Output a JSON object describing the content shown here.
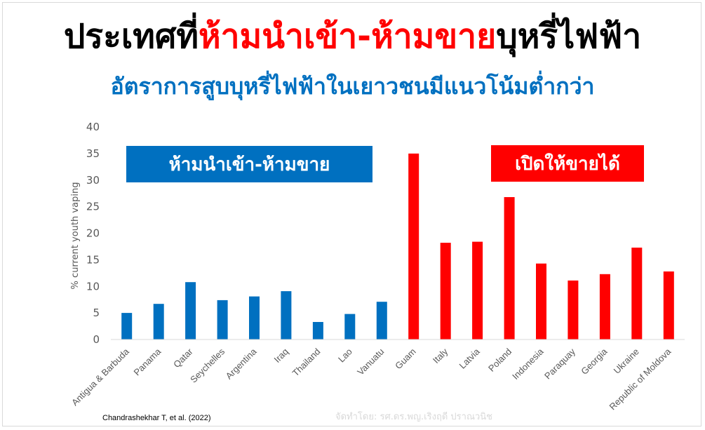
{
  "header": {
    "title_part1": "ประเทศที่",
    "title_highlight": "ห้ามนำเข้า-ห้ามขาย",
    "title_part2": "บุหรี่ไฟฟ้า",
    "subtitle": "อัตราการสูบบุหรี่ไฟฟ้าในเยาวชนมีแนวโน้มต่ำกว่า"
  },
  "footer": {
    "source": "Chandrashekhar T, et al. (2022)",
    "credit": "จัดทำโดย: รศ.ดร.พญ.เริงฤดี ปราณวนิช"
  },
  "colors": {
    "ban": "#0070c0",
    "allowed": "#ff0000",
    "title": "#000000",
    "highlight": "#ff0000",
    "subtitle": "#0070c0"
  },
  "chart_data": {
    "type": "bar",
    "ylabel": "% current youth vaping",
    "xlabel": "",
    "ylim": [
      0,
      40
    ],
    "yticks": [
      0,
      5,
      10,
      15,
      20,
      25,
      30,
      35,
      40
    ],
    "grid": false,
    "categories": [
      "Antigua & Barbuda",
      "Panama",
      "Qatar",
      "Seychelles",
      "Argentina",
      "Iraq",
      "Thailand",
      "Lao",
      "Vanuatu",
      "Guam",
      "Italy",
      "Latvia",
      "Poland",
      "Indonesia",
      "Paraquay",
      "Georgia",
      "Ukraine",
      "Republic of Moldova"
    ],
    "values": [
      5.0,
      6.7,
      10.8,
      7.4,
      8.1,
      9.1,
      3.3,
      4.8,
      7.1,
      35.0,
      18.2,
      18.4,
      26.8,
      14.3,
      11.1,
      12.3,
      17.3,
      12.8
    ],
    "groups": [
      "ban",
      "ban",
      "ban",
      "ban",
      "ban",
      "ban",
      "ban",
      "ban",
      "ban",
      "allowed",
      "allowed",
      "allowed",
      "allowed",
      "allowed",
      "allowed",
      "allowed",
      "allowed",
      "allowed"
    ],
    "legend": [
      {
        "key": "ban",
        "label": "ห้ามนำเข้า-ห้ามขาย",
        "color": "#0070c0"
      },
      {
        "key": "allowed",
        "label": "เปิดให้ขายได้",
        "color": "#ff0000"
      }
    ]
  }
}
